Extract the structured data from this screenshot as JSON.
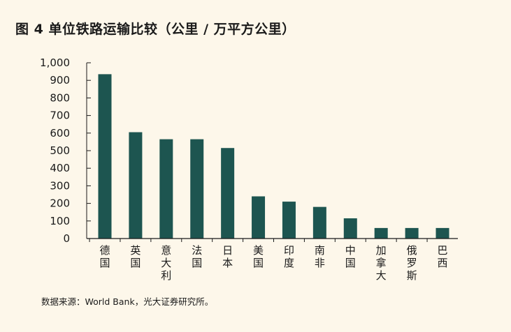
{
  "title": "图 4  单位铁路运输比较（公里 / 万平方公里）",
  "source": "数据来源：World Bank，光大证券研究所。",
  "colors": {
    "background": "#fdf7ea",
    "bar": "#1d5550",
    "axis": "#1a1a1a"
  },
  "chart_data": {
    "type": "bar",
    "title": "单位铁路运输比较（公里 / 万平方公里）",
    "xlabel": "",
    "ylabel": "",
    "ylim": [
      0,
      1000
    ],
    "yticks": [
      0,
      100,
      200,
      300,
      400,
      500,
      600,
      700,
      800,
      900,
      1000
    ],
    "ytick_labels": [
      "0",
      "100",
      "200",
      "300",
      "400",
      "500",
      "600",
      "700",
      "800",
      "900",
      "1,000"
    ],
    "categories": [
      "德国",
      "英国",
      "意大利",
      "法国",
      "日本",
      "美国",
      "印度",
      "南非",
      "中国",
      "加拿大",
      "俄罗斯",
      "巴西"
    ],
    "values": [
      935,
      605,
      565,
      565,
      515,
      240,
      210,
      180,
      115,
      60,
      60,
      60
    ],
    "grid": false,
    "legend": "none"
  }
}
